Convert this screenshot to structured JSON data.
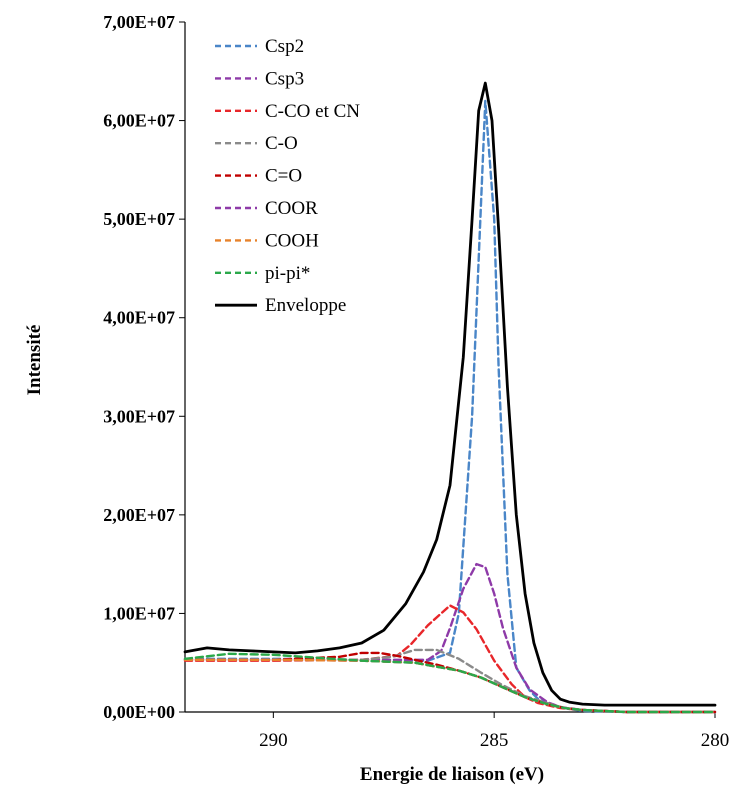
{
  "chart_data": {
    "type": "line",
    "title": "",
    "xlabel": "Energie de liaison (eV)",
    "ylabel": "Intensité",
    "xlim": [
      292,
      280
    ],
    "x_reversed": true,
    "ylim": [
      0,
      70000000
    ],
    "x_ticks": [
      290,
      285,
      280
    ],
    "y_ticks": [
      0,
      10000000,
      20000000,
      30000000,
      40000000,
      50000000,
      60000000,
      70000000
    ],
    "y_tick_labels": [
      "0,00E+00",
      "1,00E+07",
      "2,00E+07",
      "3,00E+07",
      "4,00E+07",
      "5,00E+07",
      "6,00E+07",
      "7,00E+07"
    ],
    "grid": false,
    "legend_position": "top-left",
    "series": [
      {
        "name": "Csp2",
        "color": "#4a86c8",
        "dash": true,
        "x": [
          292,
          290,
          288,
          286.5,
          286,
          285.8,
          285.5,
          285.2,
          285.0,
          284.9,
          284.7,
          284.5,
          284.2,
          284.0,
          283.7,
          283.3,
          283,
          282,
          281,
          280
        ],
        "y": [
          5400000,
          5400000,
          5300000,
          5200000,
          6000000,
          10000000,
          30000000,
          62000000,
          50000000,
          35000000,
          14000000,
          4500000,
          2200000,
          1300000,
          700000,
          300000,
          100000,
          0,
          0,
          0
        ]
      },
      {
        "name": "Csp3",
        "color": "#8e3aa8",
        "dash": true,
        "x": [
          292,
          290,
          288,
          286.5,
          286.2,
          286.0,
          285.7,
          285.4,
          285.2,
          285.0,
          284.8,
          284.5,
          284.2,
          283.8,
          283.5,
          283,
          282,
          281,
          280
        ],
        "y": [
          5300000,
          5300000,
          5300000,
          5300000,
          6200000,
          8500000,
          12500000,
          15000000,
          14700000,
          12000000,
          8500000,
          4500000,
          2300000,
          1000000,
          500000,
          200000,
          0,
          0,
          0
        ]
      },
      {
        "name": "C-CO et CN",
        "color": "#e8262a",
        "dash": true,
        "x": [
          292,
          290,
          288,
          287.2,
          286.9,
          286.5,
          286.0,
          285.7,
          285.4,
          285.0,
          284.6,
          284.3,
          284.0,
          283.5,
          283,
          282,
          281,
          280
        ],
        "y": [
          5200000,
          5200000,
          5300000,
          5700000,
          6800000,
          8800000,
          10800000,
          10100000,
          8400000,
          5200000,
          2800000,
          1500000,
          900000,
          400000,
          200000,
          0,
          0,
          0
        ]
      },
      {
        "name": "C-O",
        "color": "#8a8a8a",
        "dash": true,
        "x": [
          292,
          290,
          288,
          287.3,
          286.8,
          286.3,
          285.8,
          285.3,
          284.8,
          284.3,
          283.8,
          283.4,
          283,
          282,
          281,
          280
        ],
        "y": [
          5300000,
          5300000,
          5300000,
          5600000,
          6300000,
          6300000,
          5400000,
          4000000,
          2700000,
          1600000,
          900000,
          400000,
          200000,
          0,
          0,
          0
        ]
      },
      {
        "name": "C=O",
        "color": "#c00000",
        "dash": true,
        "x": [
          292,
          290,
          288.5,
          288,
          287.6,
          287.2,
          286.8,
          286.3,
          285.8,
          285.3,
          284.8,
          284.3,
          283.8,
          283.4,
          283,
          282,
          281,
          280
        ],
        "y": [
          5300000,
          5300000,
          5600000,
          6000000,
          6000000,
          5700000,
          5300000,
          4800000,
          4200000,
          3500000,
          2500000,
          1500000,
          800000,
          400000,
          200000,
          0,
          0,
          0
        ]
      },
      {
        "name": "COOR",
        "color": "#8e3aa8",
        "dash": true,
        "x": [
          292,
          290,
          288,
          286.8,
          286.3,
          285.8,
          285.3,
          284.8,
          284.3,
          283.8,
          283.4,
          283,
          282,
          281,
          280
        ],
        "y": [
          5300000,
          5300000,
          5200000,
          5000000,
          4600000,
          4200000,
          3500000,
          2500000,
          1500000,
          800000,
          400000,
          200000,
          0,
          0,
          0
        ]
      },
      {
        "name": "COOH",
        "color": "#e8822a",
        "dash": true,
        "x": [
          292,
          290,
          288,
          286.8,
          286.3,
          285.8,
          285.3,
          284.8,
          284.3,
          283.8,
          283.4,
          283,
          282,
          281,
          280
        ],
        "y": [
          5300000,
          5300000,
          5200000,
          5000000,
          4600000,
          4200000,
          3500000,
          2500000,
          1500000,
          800000,
          400000,
          200000,
          0,
          0,
          0
        ]
      },
      {
        "name": "pi-pi*",
        "color": "#2aa84a",
        "dash": true,
        "x": [
          292,
          291,
          290,
          288,
          286.8,
          286.3,
          285.8,
          285.3,
          284.8,
          284.3,
          283.8,
          283.4,
          283,
          282,
          281,
          280
        ],
        "y": [
          5400000,
          5900000,
          5800000,
          5200000,
          5000000,
          4600000,
          4200000,
          3500000,
          2500000,
          1500000,
          800000,
          400000,
          200000,
          0,
          0,
          0
        ]
      },
      {
        "name": "Enveloppe",
        "color": "#000000",
        "dash": false,
        "x": [
          292,
          291.5,
          291,
          290.5,
          290,
          289.5,
          289,
          288.5,
          288,
          287.5,
          287,
          286.6,
          286.3,
          286.0,
          285.7,
          285.5,
          285.35,
          285.2,
          285.05,
          284.9,
          284.7,
          284.5,
          284.3,
          284.1,
          283.9,
          283.7,
          283.5,
          283.3,
          283.0,
          282.5,
          282,
          281,
          280
        ],
        "y": [
          6100000,
          6500000,
          6300000,
          6200000,
          6100000,
          6000000,
          6200000,
          6500000,
          7000000,
          8300000,
          11000000,
          14200000,
          17500000,
          23000000,
          36000000,
          50000000,
          61000000,
          63800000,
          60000000,
          49000000,
          33000000,
          20000000,
          12000000,
          7000000,
          4000000,
          2200000,
          1300000,
          1000000,
          800000,
          700000,
          700000,
          700000,
          700000
        ]
      }
    ]
  }
}
